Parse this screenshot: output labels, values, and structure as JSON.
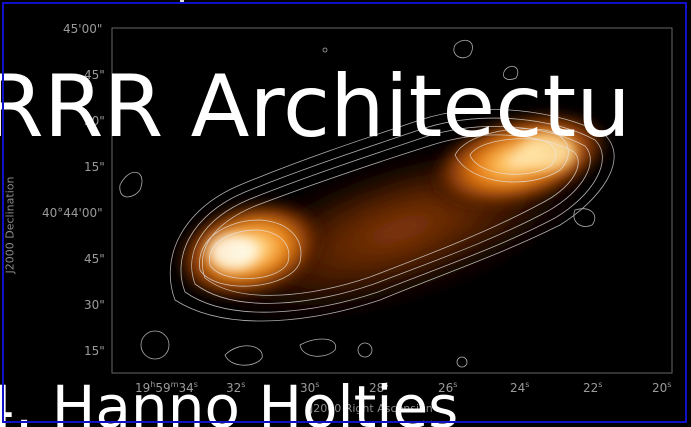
{
  "slide": {
    "title": "RRR Architectu",
    "subtitle": "4. Hanno Holties"
  },
  "image": {
    "description_icon": "radio-galaxy-image",
    "y_axis_title": "J2000 Declination",
    "x_axis_title": "J2000 Right Ascension",
    "y_ticks": [
      {
        "label": "45'00\""
      },
      {
        "label": "45\""
      },
      {
        "label": "30\""
      },
      {
        "label": "15\""
      },
      {
        "label": "40°44'00\""
      },
      {
        "label": "45\""
      },
      {
        "label": "30\""
      },
      {
        "label": "15\""
      }
    ],
    "x_ticks": [
      {
        "label_main": "19",
        "sup_h": "h",
        "label_m": "59",
        "sup_m": "m",
        "label_s": "34",
        "sup_s": "s"
      },
      {
        "label_main": "32",
        "sup_s": "s"
      },
      {
        "label_main": "30",
        "sup_s": "s"
      },
      {
        "label_main": "28",
        "sup_s": "s"
      },
      {
        "label_main": "26",
        "sup_s": "s"
      },
      {
        "label_main": "24",
        "sup_s": "s"
      },
      {
        "label_main": "22",
        "sup_s": "s"
      },
      {
        "label_main": "20",
        "sup_s": "s"
      }
    ]
  },
  "colors": {
    "frame_border": "#1010c8",
    "background": "#000000",
    "text": "#ffffff",
    "axis_text": "#9a9a9a"
  }
}
